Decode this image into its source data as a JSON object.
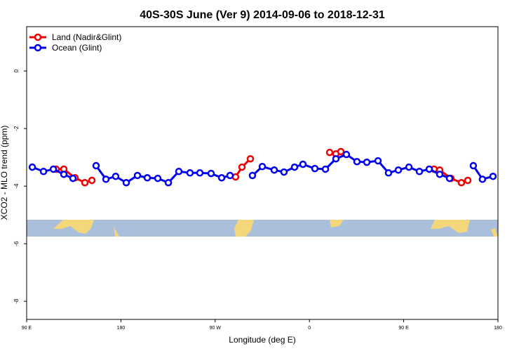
{
  "chart_data": {
    "type": "line",
    "title": "40S-30S June (Ver 9)   2014-09-06 to 2018-12-31",
    "x_label": "Longitude (deg E)",
    "y_label": "XCO2 - MLO trend (ppm)",
    "xlim": [
      90,
      540
    ],
    "ylim": [
      -8.63,
      1.54
    ],
    "xticks": [
      {
        "value": 90,
        "label": "90 E"
      },
      180,
      {
        "value": 270,
        "label": "90 W"
      },
      {
        "value": 360,
        "label": "0"
      },
      {
        "value": 450,
        "label": "90 E"
      },
      {
        "value": 540,
        "label": "180"
      }
    ],
    "yticks": [
      0,
      -2,
      -4,
      -6,
      -8
    ],
    "legend": "upper left",
    "series": [
      {
        "name": "Land (Nadir&Glint)",
        "color": "#ee0000",
        "x": [
          118.1,
          125.5,
          136.2,
          145.6,
          152.3,
          null,
          289.5,
          295.6,
          303.6,
          null,
          379.3,
          385.3,
          390.0,
          null,
          479.0,
          484.4,
          495.1,
          505.1,
          511.2
        ],
        "values": [
          -3.41,
          -3.41,
          -3.71,
          -3.88,
          -3.8,
          null,
          -3.68,
          -3.34,
          -3.05,
          null,
          -2.83,
          -2.88,
          -2.8,
          null,
          -3.41,
          -3.44,
          -3.73,
          -3.88,
          -3.8
        ]
      },
      {
        "name": "Ocean (Glint)",
        "color": "#0000ee",
        "x": [
          95.4,
          106.1,
          115.5,
          125.5,
          134.2,
          null,
          156.3,
          165.7,
          175.0,
          185.1,
          195.8,
          205.2,
          215.2,
          225.3,
          235.3,
          246.0,
          255.4,
          266.1,
          276.2,
          284.2,
          null,
          305.6,
          315.0,
          326.4,
          335.7,
          345.8,
          353.8,
          365.2,
          375.3,
          385.3,
          395.3,
          405.4,
          414.8,
          425.5,
          435.5,
          444.9,
          455.0,
          465.0,
          474.4,
          484.4,
          493.8,
          null,
          516.5,
          525.2,
          535.3
        ],
        "values": [
          -3.34,
          -3.49,
          -3.41,
          -3.59,
          -3.73,
          null,
          -3.29,
          -3.76,
          -3.66,
          -3.88,
          -3.63,
          -3.71,
          -3.73,
          -3.88,
          -3.49,
          -3.54,
          -3.54,
          -3.56,
          -3.71,
          -3.63,
          null,
          -3.63,
          -3.32,
          -3.44,
          -3.51,
          -3.34,
          -3.24,
          -3.39,
          -3.41,
          -3.05,
          -2.9,
          -3.15,
          -3.17,
          -3.12,
          -3.54,
          -3.44,
          -3.34,
          -3.49,
          -3.41,
          -3.59,
          -3.73,
          null,
          -3.29,
          -3.76,
          -3.66
        ]
      }
    ]
  }
}
